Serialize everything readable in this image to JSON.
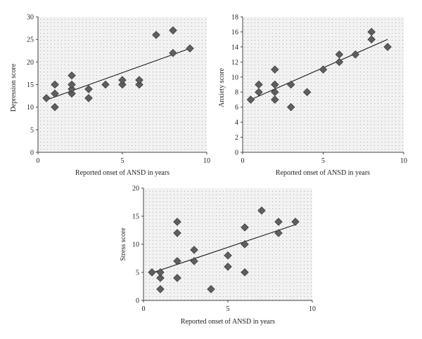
{
  "colors": {
    "marker_fill": "#5f5f5f",
    "marker_stroke": "#3d3d3d",
    "trendline": "#1a1a1a",
    "plot_background": "#f2f2f2",
    "grid_dots": "#9a9a9a",
    "axis": "#444444"
  },
  "chart_data": [
    {
      "type": "scatter",
      "xlabel": "Reported onset of ANSD in years",
      "ylabel": "Depression score",
      "xlim": [
        0,
        10
      ],
      "ylim": [
        0,
        30
      ],
      "x_ticks": [
        0,
        5,
        10
      ],
      "y_ticks": [
        0,
        5,
        10,
        15,
        20,
        25,
        30
      ],
      "grid": true,
      "marker": "diamond",
      "points": [
        {
          "x": 0.5,
          "y": 12
        },
        {
          "x": 1,
          "y": 10
        },
        {
          "x": 1,
          "y": 13
        },
        {
          "x": 1,
          "y": 15
        },
        {
          "x": 2,
          "y": 13
        },
        {
          "x": 2,
          "y": 14
        },
        {
          "x": 2,
          "y": 15
        },
        {
          "x": 2,
          "y": 17
        },
        {
          "x": 3,
          "y": 12
        },
        {
          "x": 3,
          "y": 14
        },
        {
          "x": 4,
          "y": 15
        },
        {
          "x": 5,
          "y": 15
        },
        {
          "x": 5,
          "y": 16
        },
        {
          "x": 6,
          "y": 15
        },
        {
          "x": 6,
          "y": 16
        },
        {
          "x": 7,
          "y": 26
        },
        {
          "x": 8,
          "y": 22
        },
        {
          "x": 8,
          "y": 27
        },
        {
          "x": 9,
          "y": 23
        }
      ],
      "trendline": {
        "x": [
          0.5,
          9
        ],
        "y": [
          11.6,
          23
        ]
      }
    },
    {
      "type": "scatter",
      "xlabel": "Reported onset of ANSD in years",
      "ylabel": "Anxiety score",
      "xlim": [
        0,
        10
      ],
      "ylim": [
        0,
        18
      ],
      "x_ticks": [
        0,
        5,
        10
      ],
      "y_ticks": [
        0,
        2,
        4,
        6,
        8,
        10,
        12,
        14,
        16,
        18
      ],
      "grid": true,
      "marker": "diamond",
      "points": [
        {
          "x": 0.5,
          "y": 7
        },
        {
          "x": 1,
          "y": 8
        },
        {
          "x": 1,
          "y": 9
        },
        {
          "x": 2,
          "y": 7
        },
        {
          "x": 2,
          "y": 8
        },
        {
          "x": 2,
          "y": 9
        },
        {
          "x": 2,
          "y": 11
        },
        {
          "x": 3,
          "y": 6
        },
        {
          "x": 3,
          "y": 9
        },
        {
          "x": 4,
          "y": 8
        },
        {
          "x": 5,
          "y": 11
        },
        {
          "x": 6,
          "y": 12
        },
        {
          "x": 6,
          "y": 13
        },
        {
          "x": 7,
          "y": 13
        },
        {
          "x": 8,
          "y": 15
        },
        {
          "x": 8,
          "y": 16
        },
        {
          "x": 9,
          "y": 14
        }
      ],
      "trendline": {
        "x": [
          0.5,
          9
        ],
        "y": [
          7,
          15
        ]
      }
    },
    {
      "type": "scatter",
      "xlabel": "Reported onset of ANSD in years",
      "ylabel": "Stress score",
      "xlim": [
        0,
        10
      ],
      "ylim": [
        0,
        20
      ],
      "x_ticks": [
        0,
        5,
        10
      ],
      "y_ticks": [
        0,
        5,
        10,
        15,
        20
      ],
      "grid": true,
      "marker": "diamond",
      "points": [
        {
          "x": 0.5,
          "y": 5
        },
        {
          "x": 1,
          "y": 2
        },
        {
          "x": 1,
          "y": 4
        },
        {
          "x": 1,
          "y": 5
        },
        {
          "x": 2,
          "y": 4
        },
        {
          "x": 2,
          "y": 7
        },
        {
          "x": 2,
          "y": 12
        },
        {
          "x": 2,
          "y": 14
        },
        {
          "x": 3,
          "y": 7
        },
        {
          "x": 3,
          "y": 9
        },
        {
          "x": 4,
          "y": 2
        },
        {
          "x": 5,
          "y": 6
        },
        {
          "x": 5,
          "y": 8
        },
        {
          "x": 6,
          "y": 5
        },
        {
          "x": 6,
          "y": 10
        },
        {
          "x": 6,
          "y": 13
        },
        {
          "x": 7,
          "y": 16
        },
        {
          "x": 8,
          "y": 12
        },
        {
          "x": 8,
          "y": 14
        },
        {
          "x": 9,
          "y": 14
        }
      ],
      "trendline": {
        "x": [
          0.5,
          9
        ],
        "y": [
          4.9,
          13.5
        ]
      }
    }
  ]
}
